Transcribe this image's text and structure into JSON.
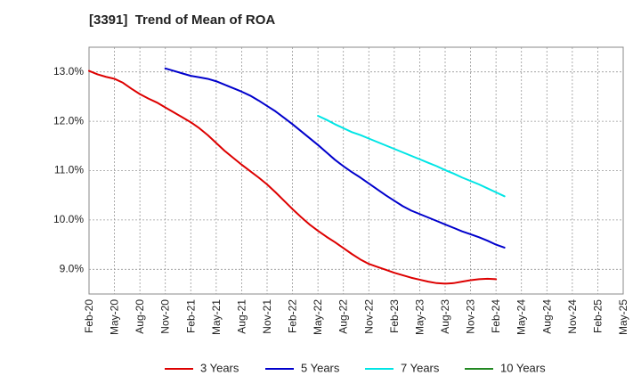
{
  "chart_data": {
    "type": "line",
    "title": "[3391]  Trend of Mean of ROA",
    "xlabel": "",
    "ylabel": "",
    "ylim": [
      8.5,
      13.5
    ],
    "y_ticks": [
      9.0,
      10.0,
      11.0,
      12.0,
      13.0
    ],
    "y_tick_labels": [
      "9.0%",
      "10.0%",
      "11.0%",
      "12.0%",
      "13.0%"
    ],
    "x_tick_labels": [
      "Feb-20",
      "May-20",
      "Aug-20",
      "Nov-20",
      "Feb-21",
      "May-21",
      "Aug-21",
      "Nov-21",
      "Feb-22",
      "May-22",
      "Aug-22",
      "Nov-22",
      "Feb-23",
      "May-23",
      "Aug-23",
      "Nov-23",
      "Feb-24",
      "May-24",
      "Aug-24",
      "Nov-24",
      "Feb-25",
      "May-25"
    ],
    "grid": true,
    "legend_position": "bottom",
    "series": [
      {
        "name": "3 Years",
        "color": "#dd0000",
        "start_index": 0,
        "values": [
          13.02,
          12.95,
          12.9,
          12.86,
          12.78,
          12.66,
          12.55,
          12.46,
          12.38,
          12.28,
          12.18,
          12.08,
          11.98,
          11.86,
          11.72,
          11.56,
          11.4,
          11.26,
          11.12,
          10.99,
          10.86,
          10.72,
          10.56,
          10.39,
          10.22,
          10.06,
          9.91,
          9.78,
          9.66,
          9.55,
          9.43,
          9.31,
          9.2,
          9.11,
          9.05,
          8.99,
          8.93,
          8.88,
          8.83,
          8.79,
          8.75,
          8.72,
          8.71,
          8.72,
          8.75,
          8.78,
          8.8,
          8.81,
          8.8
        ]
      },
      {
        "name": "5 Years",
        "color": "#0000cc",
        "start_index": 9,
        "values": [
          13.07,
          13.02,
          12.97,
          12.92,
          12.89,
          12.86,
          12.81,
          12.74,
          12.67,
          12.6,
          12.52,
          12.42,
          12.31,
          12.2,
          12.07,
          11.94,
          11.8,
          11.66,
          11.52,
          11.37,
          11.22,
          11.09,
          10.97,
          10.86,
          10.74,
          10.62,
          10.5,
          10.39,
          10.28,
          10.19,
          10.12,
          10.05,
          9.98,
          9.91,
          9.84,
          9.77,
          9.71,
          9.65,
          9.58,
          9.5,
          9.44
        ]
      },
      {
        "name": "7 Years",
        "color": "#00e5e5",
        "start_index": 27,
        "values": [
          12.11,
          12.03,
          11.94,
          11.86,
          11.78,
          11.72,
          11.65,
          11.58,
          11.51,
          11.44,
          11.37,
          11.3,
          11.23,
          11.16,
          11.09,
          11.01,
          10.94,
          10.86,
          10.79,
          10.72,
          10.64,
          10.56,
          10.48
        ]
      },
      {
        "name": "10 Years",
        "color": "#228822",
        "start_index": 0,
        "values": []
      }
    ]
  }
}
